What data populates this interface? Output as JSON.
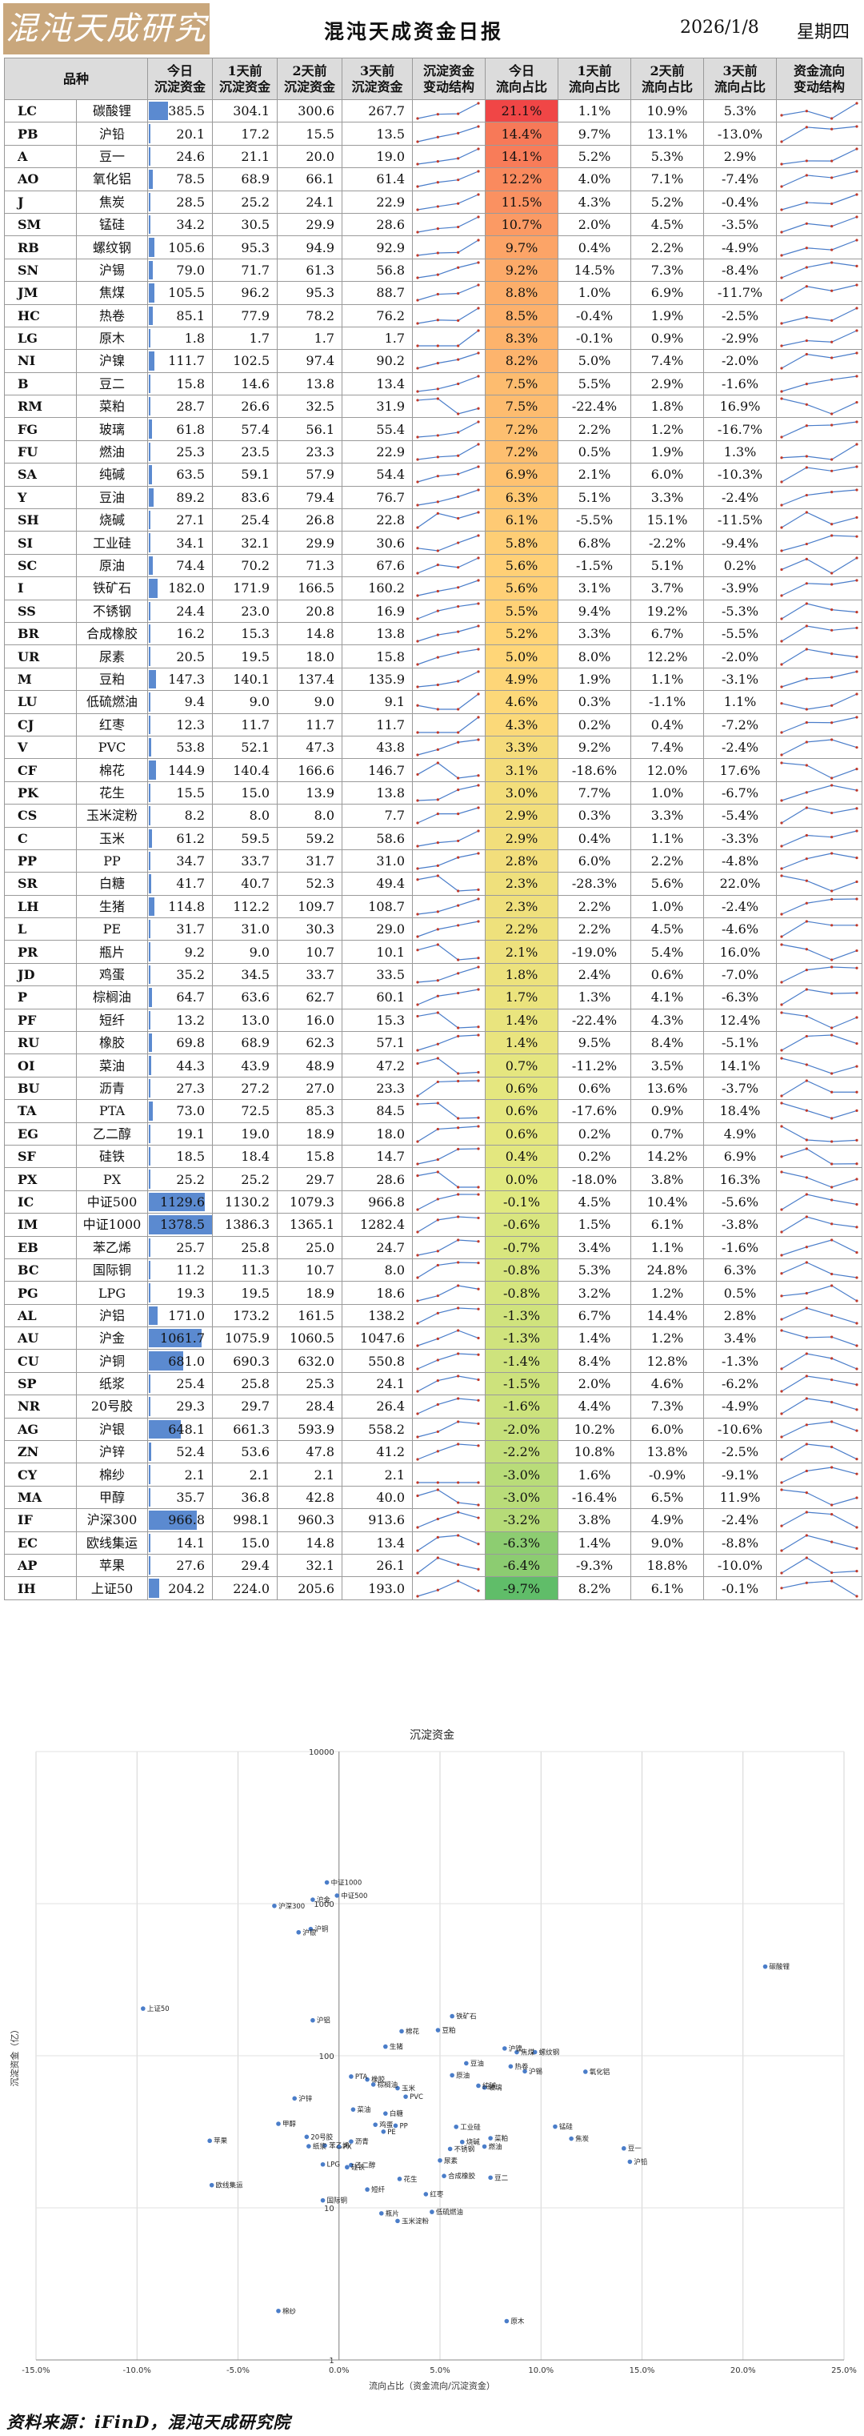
{
  "header": {
    "logo_text": "混沌天成研究院",
    "title": "混沌天成资金日报",
    "date": "2026/1/8",
    "weekday": "星期四"
  },
  "table": {
    "columns": [
      "品种",
      "今日\n沉淀资金",
      "1天前\n沉淀资金",
      "2天前\n沉淀资金",
      "3天前\n沉淀资金",
      "沉淀资金\n变动结构",
      "今日\n流向占比",
      "1天前\n流向占比",
      "2天前\n流向占比",
      "3天前\n流向占比",
      "资金流向\n变动结构"
    ],
    "rows": [
      [
        "LC",
        "碳酸锂",
        385.5,
        304.1,
        300.6,
        267.7,
        21.1,
        1.1,
        10.9,
        5.3
      ],
      [
        "PB",
        "沪铅",
        20.1,
        17.2,
        15.5,
        13.5,
        14.4,
        9.7,
        13.1,
        -13.0
      ],
      [
        "A",
        "豆一",
        24.6,
        21.1,
        20.0,
        19.0,
        14.1,
        5.2,
        5.3,
        2.9
      ],
      [
        "AO",
        "氧化铝",
        78.5,
        68.9,
        66.1,
        61.4,
        12.2,
        4.0,
        7.1,
        -7.4
      ],
      [
        "J",
        "焦炭",
        28.5,
        25.2,
        24.1,
        22.9,
        11.5,
        4.3,
        5.2,
        -0.4
      ],
      [
        "SM",
        "锰硅",
        34.2,
        30.5,
        29.9,
        28.6,
        10.7,
        2.0,
        4.5,
        -3.5
      ],
      [
        "RB",
        "螺纹钢",
        105.6,
        95.3,
        94.9,
        92.9,
        9.7,
        0.4,
        2.2,
        -4.9
      ],
      [
        "SN",
        "沪锡",
        79.0,
        71.7,
        61.3,
        56.8,
        9.2,
        14.5,
        7.3,
        -8.4
      ],
      [
        "JM",
        "焦煤",
        105.5,
        96.2,
        95.3,
        88.7,
        8.8,
        1.0,
        6.9,
        -11.7
      ],
      [
        "HC",
        "热卷",
        85.1,
        77.9,
        78.2,
        76.2,
        8.5,
        -0.4,
        1.9,
        -2.5
      ],
      [
        "LG",
        "原木",
        1.8,
        1.7,
        1.7,
        1.7,
        8.3,
        -0.1,
        0.9,
        -2.9
      ],
      [
        "NI",
        "沪镍",
        111.7,
        102.5,
        97.4,
        90.2,
        8.2,
        5.0,
        7.4,
        -2.0
      ],
      [
        "B",
        "豆二",
        15.8,
        14.6,
        13.8,
        13.4,
        7.5,
        5.5,
        2.9,
        -1.6
      ],
      [
        "RM",
        "菜粕",
        28.7,
        26.6,
        32.5,
        31.9,
        7.5,
        -22.4,
        1.8,
        16.9
      ],
      [
        "FG",
        "玻璃",
        61.8,
        57.4,
        56.1,
        55.4,
        7.2,
        2.2,
        1.2,
        -16.7
      ],
      [
        "FU",
        "燃油",
        25.3,
        23.5,
        23.3,
        22.9,
        7.2,
        0.5,
        1.9,
        1.3
      ],
      [
        "SA",
        "纯碱",
        63.5,
        59.1,
        57.9,
        54.4,
        6.9,
        2.1,
        6.0,
        -10.3
      ],
      [
        "Y",
        "豆油",
        89.2,
        83.6,
        79.4,
        76.7,
        6.3,
        5.1,
        3.3,
        -2.4
      ],
      [
        "SH",
        "烧碱",
        27.1,
        25.4,
        26.8,
        22.8,
        6.1,
        -5.5,
        15.1,
        -11.5
      ],
      [
        "SI",
        "工业硅",
        34.1,
        32.1,
        29.9,
        30.6,
        5.8,
        6.8,
        -2.2,
        -9.4
      ],
      [
        "SC",
        "原油",
        74.4,
        70.2,
        71.3,
        67.6,
        5.6,
        -1.5,
        5.1,
        0.2
      ],
      [
        "I",
        "铁矿石",
        182.0,
        171.9,
        166.5,
        160.2,
        5.6,
        3.1,
        3.7,
        -3.9
      ],
      [
        "SS",
        "不锈钢",
        24.4,
        23.0,
        20.8,
        16.9,
        5.5,
        9.4,
        19.2,
        -5.3
      ],
      [
        "BR",
        "合成橡胶",
        16.2,
        15.3,
        14.8,
        13.8,
        5.2,
        3.3,
        6.7,
        -5.5
      ],
      [
        "UR",
        "尿素",
        20.5,
        19.5,
        18.0,
        15.8,
        5.0,
        8.0,
        12.2,
        -2.0
      ],
      [
        "M",
        "豆粕",
        147.3,
        140.1,
        137.4,
        135.9,
        4.9,
        1.9,
        1.1,
        -3.1
      ],
      [
        "LU",
        "低硫燃油",
        9.4,
        9.0,
        9.0,
        9.1,
        4.6,
        0.3,
        -1.1,
        1.1
      ],
      [
        "CJ",
        "红枣",
        12.3,
        11.7,
        11.7,
        11.7,
        4.3,
        0.2,
        0.4,
        -7.2
      ],
      [
        "V",
        "PVC",
        53.8,
        52.1,
        47.3,
        43.8,
        3.3,
        9.2,
        7.4,
        -2.4
      ],
      [
        "CF",
        "棉花",
        144.9,
        140.4,
        166.6,
        146.7,
        3.1,
        -18.6,
        12.0,
        17.6
      ],
      [
        "PK",
        "花生",
        15.5,
        15.0,
        13.9,
        13.8,
        3.0,
        7.7,
        1.0,
        -6.7
      ],
      [
        "CS",
        "玉米淀粉",
        8.2,
        8.0,
        8.0,
        7.7,
        2.9,
        0.3,
        3.3,
        -5.4
      ],
      [
        "C",
        "玉米",
        61.2,
        59.5,
        59.2,
        58.6,
        2.9,
        0.4,
        1.1,
        -3.3
      ],
      [
        "PP",
        "PP",
        34.7,
        33.7,
        31.7,
        31.0,
        2.8,
        6.0,
        2.2,
        -4.8
      ],
      [
        "SR",
        "白糖",
        41.7,
        40.7,
        52.3,
        49.4,
        2.3,
        -28.3,
        5.6,
        22.0
      ],
      [
        "LH",
        "生猪",
        114.8,
        112.2,
        109.7,
        108.7,
        2.3,
        2.2,
        1.0,
        -2.4
      ],
      [
        "L",
        "PE",
        31.7,
        31.0,
        30.3,
        29.0,
        2.2,
        2.2,
        4.5,
        -4.6
      ],
      [
        "PR",
        "瓶片",
        9.2,
        9.0,
        10.7,
        10.1,
        2.1,
        -19.0,
        5.4,
        16.0
      ],
      [
        "JD",
        "鸡蛋",
        35.2,
        34.5,
        33.7,
        33.5,
        1.8,
        2.4,
        0.6,
        -7.0
      ],
      [
        "P",
        "棕榈油",
        64.7,
        63.6,
        62.7,
        60.1,
        1.7,
        1.3,
        4.1,
        -6.3
      ],
      [
        "PF",
        "短纤",
        13.2,
        13.0,
        16.0,
        15.3,
        1.4,
        -22.4,
        4.3,
        12.4
      ],
      [
        "RU",
        "橡胶",
        69.8,
        68.9,
        62.3,
        57.1,
        1.4,
        9.5,
        8.4,
        -5.1
      ],
      [
        "OI",
        "菜油",
        44.3,
        43.9,
        48.9,
        47.2,
        0.7,
        -11.2,
        3.5,
        14.1
      ],
      [
        "BU",
        "沥青",
        27.3,
        27.2,
        27.0,
        23.3,
        0.6,
        0.6,
        13.6,
        -3.7
      ],
      [
        "TA",
        "PTA",
        73.0,
        72.5,
        85.3,
        84.5,
        0.6,
        -17.6,
        0.9,
        18.4
      ],
      [
        "EG",
        "乙二醇",
        19.1,
        19.0,
        18.9,
        18.0,
        0.6,
        0.2,
        0.7,
        4.9
      ],
      [
        "SF",
        "硅铁",
        18.5,
        18.4,
        15.8,
        14.7,
        0.4,
        0.2,
        14.2,
        6.9
      ],
      [
        "PX",
        "PX",
        25.2,
        25.2,
        29.7,
        28.6,
        0.0,
        -18.0,
        3.8,
        16.3
      ],
      [
        "IC",
        "中证500",
        1129.6,
        1130.2,
        1079.3,
        966.8,
        -0.1,
        4.5,
        10.4,
        -5.6
      ],
      [
        "IM",
        "中证1000",
        1378.5,
        1386.3,
        1365.1,
        1282.4,
        -0.6,
        1.5,
        6.1,
        -3.8
      ],
      [
        "EB",
        "苯乙烯",
        25.7,
        25.8,
        25.0,
        24.7,
        -0.7,
        3.4,
        1.1,
        -1.6
      ],
      [
        "BC",
        "国际铜",
        11.2,
        11.3,
        10.7,
        8.0,
        -0.8,
        5.3,
        24.8,
        6.3
      ],
      [
        "PG",
        "LPG",
        19.3,
        19.5,
        18.9,
        18.6,
        -0.8,
        3.2,
        1.2,
        0.5
      ],
      [
        "AL",
        "沪铝",
        171.0,
        173.2,
        161.5,
        138.2,
        -1.3,
        6.7,
        14.4,
        2.8
      ],
      [
        "AU",
        "沪金",
        1061.7,
        1075.9,
        1060.5,
        1047.6,
        -1.3,
        1.4,
        1.2,
        3.4
      ],
      [
        "CU",
        "沪铜",
        681.0,
        690.3,
        632.0,
        550.8,
        -1.4,
        8.4,
        12.8,
        -1.3
      ],
      [
        "SP",
        "纸浆",
        25.4,
        25.8,
        25.3,
        24.1,
        -1.5,
        2.0,
        4.6,
        -6.2
      ],
      [
        "NR",
        "20号胶",
        29.3,
        29.7,
        28.4,
        26.4,
        -1.6,
        4.4,
        7.3,
        -4.9
      ],
      [
        "AG",
        "沪银",
        648.1,
        661.3,
        593.9,
        558.2,
        -2.0,
        10.2,
        6.0,
        -10.6
      ],
      [
        "ZN",
        "沪锌",
        52.4,
        53.6,
        47.8,
        41.2,
        -2.2,
        10.8,
        13.8,
        -2.5
      ],
      [
        "CY",
        "棉纱",
        2.1,
        2.1,
        2.1,
        2.1,
        -3.0,
        1.6,
        -0.9,
        -9.1
      ],
      [
        "MA",
        "甲醇",
        35.7,
        36.8,
        42.8,
        40.0,
        -3.0,
        -16.4,
        6.5,
        11.9
      ],
      [
        "IF",
        "沪深300",
        966.8,
        998.1,
        960.3,
        913.6,
        -3.2,
        3.8,
        4.9,
        -2.4
      ],
      [
        "EC",
        "欧线集运",
        14.1,
        15.0,
        14.8,
        13.4,
        -6.3,
        1.4,
        9.0,
        -8.8
      ],
      [
        "AP",
        "苹果",
        27.6,
        29.4,
        32.1,
        26.1,
        -6.4,
        -9.3,
        18.8,
        -10.0
      ],
      [
        "IH",
        "上证50",
        204.2,
        224.0,
        205.6,
        193.0,
        -9.7,
        8.2,
        6.1,
        -0.1
      ]
    ]
  },
  "chart_data": {
    "type": "scatter",
    "title": "沉淀资金",
    "xlabel": "流向占比（资金流向/沉淀资金）",
    "ylabel": "沉淀资金（亿）",
    "xlim": [
      -15,
      25
    ],
    "ylim": [
      1,
      10000
    ],
    "y_scale": "log",
    "x_ticks": [
      "-15.0%",
      "-10.0%",
      "-5.0%",
      "0.0%",
      "5.0%",
      "10.0%",
      "15.0%",
      "20.0%",
      "25.0%"
    ],
    "y_ticks": [
      "1",
      "10",
      "100",
      "1000",
      "10000"
    ],
    "point_color": "#4a7dc9"
  },
  "footer": {
    "source": "资料来源：iFinD，混沌天成研究院"
  }
}
